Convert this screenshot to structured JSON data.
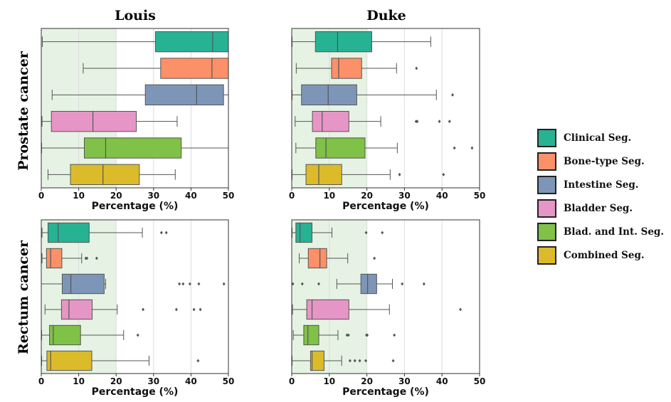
{
  "figure": {
    "columns": [
      "Louis",
      "Duke"
    ],
    "rows": [
      "Prostate cancer",
      "Rectum cancer"
    ]
  },
  "legend": [
    {
      "name": "Clinical Seg.",
      "color": "#27b294"
    },
    {
      "name": "Bone-type Seg.",
      "color": "#fb9069"
    },
    {
      "name": "Intestine Seg.",
      "color": "#7d96b8"
    },
    {
      "name": "Bladder Seg.",
      "color": "#e696c6"
    },
    {
      "name": "Blad. and Int. Seg.",
      "color": "#80c148"
    },
    {
      "name": "Combined Seg.",
      "color": "#dcbb2b"
    }
  ],
  "chart_data": [
    {
      "type": "box",
      "title": "Louis",
      "row": "Prostate cancer",
      "xlabel": "Percentage (%)",
      "xlim": [
        0,
        50
      ],
      "xticks": [
        0,
        10,
        20,
        30,
        40,
        50
      ],
      "shaded_range": [
        0,
        20
      ],
      "grid": true,
      "series": [
        {
          "name": "Clinical Seg.",
          "whisker_low": 0.3,
          "q1": 30.5,
          "median": 45.8,
          "q3": 50,
          "whisker_high": 50,
          "outliers": []
        },
        {
          "name": "Bone-type Seg.",
          "whisker_low": 11.2,
          "q1": 31.9,
          "median": 45.6,
          "q3": 50,
          "whisker_high": 50,
          "outliers": []
        },
        {
          "name": "Intestine Seg.",
          "whisker_low": 2.9,
          "q1": 27.8,
          "median": 41.5,
          "q3": 48.7,
          "whisker_high": 50,
          "outliers": []
        },
        {
          "name": "Bladder Seg.",
          "whisker_low": 0.2,
          "q1": 2.7,
          "median": 13.8,
          "q3": 25.4,
          "whisker_high": 36.3,
          "outliers": []
        },
        {
          "name": "Blad. and Int. Seg.",
          "whisker_low": 0.1,
          "q1": 11.5,
          "median": 17.2,
          "q3": 37.4,
          "whisker_high": 50,
          "outliers": []
        },
        {
          "name": "Combined Seg.",
          "whisker_low": 1.8,
          "q1": 7.8,
          "median": 16.5,
          "q3": 26.2,
          "whisker_high": 35.8,
          "outliers": []
        }
      ]
    },
    {
      "type": "box",
      "title": "Duke",
      "row": "Prostate cancer",
      "xlabel": "Percentage (%)",
      "xlim": [
        0,
        50
      ],
      "xticks": [
        0,
        10,
        20,
        30,
        40,
        50
      ],
      "shaded_range": [
        0,
        20
      ],
      "grid": true,
      "series": [
        {
          "name": "Clinical Seg.",
          "whisker_low": 0.1,
          "q1": 6.3,
          "median": 12.2,
          "q3": 21.3,
          "whisker_high": 37.0,
          "outliers": []
        },
        {
          "name": "Bone-type Seg.",
          "whisker_low": 1.2,
          "q1": 10.6,
          "median": 12.5,
          "q3": 18.6,
          "whisker_high": 27.9,
          "outliers": [
            33.2
          ]
        },
        {
          "name": "Intestine Seg.",
          "whisker_low": 0.1,
          "q1": 2.6,
          "median": 9.7,
          "q3": 17.3,
          "whisker_high": 38.5,
          "outliers": [
            42.8
          ]
        },
        {
          "name": "Bladder Seg.",
          "whisker_low": 0.9,
          "q1": 5.5,
          "median": 8.1,
          "q3": 15.2,
          "whisker_high": 23.7,
          "outliers": [
            33.1,
            33.4,
            39.3,
            42.0
          ]
        },
        {
          "name": "Blad. and Int. Seg.",
          "whisker_low": 1.1,
          "q1": 6.4,
          "median": 9.1,
          "q3": 19.5,
          "whisker_high": 28.1,
          "outliers": [
            43.3,
            48.0
          ]
        },
        {
          "name": "Combined Seg.",
          "whisker_low": 0.1,
          "q1": 3.8,
          "median": 7.2,
          "q3": 13.3,
          "whisker_high": 26.2,
          "outliers": [
            28.7,
            40.4
          ]
        }
      ]
    },
    {
      "type": "box",
      "title": "Louis",
      "row": "Rectum cancer",
      "xlabel": "Percentage (%)",
      "xlim": [
        0,
        50
      ],
      "xticks": [
        0,
        10,
        20,
        30,
        40,
        50
      ],
      "shaded_range": [
        0,
        20
      ],
      "grid": true,
      "series": [
        {
          "name": "Clinical Seg.",
          "whisker_low": 0.2,
          "q1": 1.8,
          "median": 4.5,
          "q3": 12.8,
          "whisker_high": 27.0,
          "outliers": [
            32.1,
            33.4
          ]
        },
        {
          "name": "Bone-type Seg.",
          "whisker_low": 0.2,
          "q1": 1.4,
          "median": 2.5,
          "q3": 5.5,
          "whisker_high": 10.8,
          "outliers": [
            11.9,
            12.2,
            14.8
          ]
        },
        {
          "name": "Intestine Seg.",
          "whisker_low": 0.0,
          "q1": 5.6,
          "median": 7.9,
          "q3": 16.8,
          "whisker_high": 17.2,
          "outliers": [
            36.9,
            37.9,
            39.7,
            42.1,
            48.8
          ]
        },
        {
          "name": "Bladder Seg.",
          "whisker_low": 1.0,
          "q1": 5.4,
          "median": 7.4,
          "q3": 13.6,
          "whisker_high": 20.3,
          "outliers": [
            27.2,
            36.1,
            40.8,
            42.5
          ]
        },
        {
          "name": "Blad. and Int. Seg.",
          "whisker_low": 0.1,
          "q1": 2.2,
          "median": 3.2,
          "q3": 10.5,
          "whisker_high": 22.0,
          "outliers": [
            25.8
          ]
        },
        {
          "name": "Combined Seg.",
          "whisker_low": 0.1,
          "q1": 1.5,
          "median": 2.5,
          "q3": 13.5,
          "whisker_high": 28.8,
          "outliers": [
            41.9
          ]
        }
      ]
    },
    {
      "type": "box",
      "title": "Duke",
      "row": "Rectum cancer",
      "xlabel": "Percentage (%)",
      "xlim": [
        0,
        50
      ],
      "xticks": [
        0,
        10,
        20,
        30,
        40,
        50
      ],
      "shaded_range": [
        0,
        20
      ],
      "grid": true,
      "series": [
        {
          "name": "Clinical Seg.",
          "whisker_low": 0.1,
          "q1": 1.1,
          "median": 2.2,
          "q3": 5.4,
          "whisker_high": 10.7,
          "outliers": [
            19.8,
            24.1
          ]
        },
        {
          "name": "Bone-type Seg.",
          "whisker_low": 2.0,
          "q1": 4.4,
          "median": 7.5,
          "q3": 9.3,
          "whisker_high": 14.9,
          "outliers": [
            22.0
          ]
        },
        {
          "name": "Intestine Seg.",
          "whisker_low": 12.0,
          "q1": 18.4,
          "median": 20.2,
          "q3": 22.6,
          "whisker_high": 26.8,
          "outliers": [
            0.3,
            2.8,
            7.2,
            29.4,
            35.2
          ]
        },
        {
          "name": "Bladder Seg.",
          "whisker_low": 0.2,
          "q1": 4.0,
          "median": 5.4,
          "q3": 15.2,
          "whisker_high": 26.0,
          "outliers": [
            44.9
          ]
        },
        {
          "name": "Blad. and Int. Seg.",
          "whisker_low": 0.4,
          "q1": 3.2,
          "median": 4.3,
          "q3": 7.2,
          "whisker_high": 12.3,
          "outliers": [
            14.7,
            15.1,
            19.9,
            20.1,
            27.3
          ]
        },
        {
          "name": "Combined Seg.",
          "whisker_low": 0.1,
          "q1": 5.0,
          "median": 5.4,
          "q3": 8.6,
          "whisker_high": 13.3,
          "outliers": [
            15.5,
            16.8,
            18.1,
            19.7,
            27.0
          ]
        }
      ]
    }
  ]
}
